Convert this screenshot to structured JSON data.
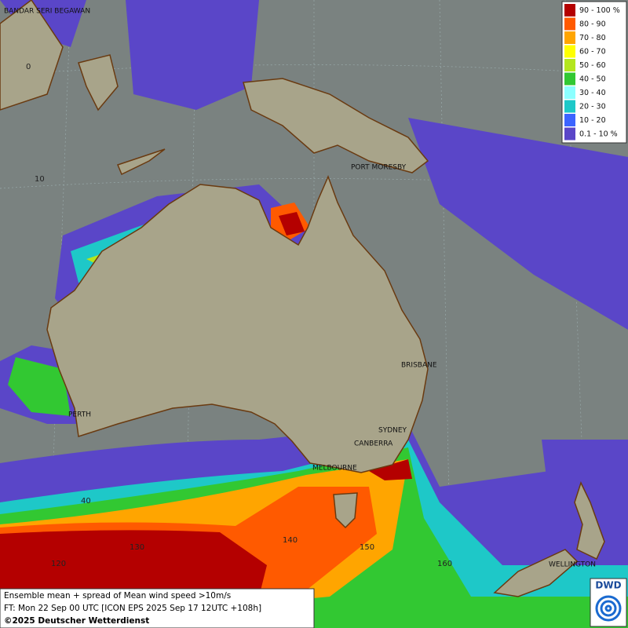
{
  "map": {
    "legend": [
      {
        "label": "90 - 100 %",
        "color": "#b40000"
      },
      {
        "label": "80 - 90",
        "color": "#ff5a00"
      },
      {
        "label": "70 - 80",
        "color": "#ffa500"
      },
      {
        "label": "60 - 70",
        "color": "#ffff00"
      },
      {
        "label": "50 - 60",
        "color": "#b4e61e"
      },
      {
        "label": "40 - 50",
        "color": "#32c832"
      },
      {
        "label": "30 - 40",
        "color": "#8cffff"
      },
      {
        "label": "20 - 30",
        "color": "#1ec8c8"
      },
      {
        "label": "10 - 20",
        "color": "#3c64ff"
      },
      {
        "label": "0.1 - 10 %",
        "color": "#5a46c8"
      }
    ],
    "cities": [
      "BANDAR SERI BEGAWAN",
      "PORT MORESBY",
      "BRISBANE",
      "PERTH",
      "SYDNEY",
      "CANBERRA",
      "MELBOURNE",
      "WELLINGTON"
    ],
    "graticule": {
      "lat": [
        0,
        10,
        40
      ],
      "lon": [
        120,
        130,
        140,
        150,
        160
      ]
    },
    "caption": [
      "Ensemble mean + spread of Mean wind speed >10m/s",
      "FT: Mon 22 Sep 00 UTC [ICON EPS 2025 Sep 17 12UTC +108h]",
      "©2025 Deutscher Wetterdienst"
    ],
    "logo": "DWD"
  }
}
